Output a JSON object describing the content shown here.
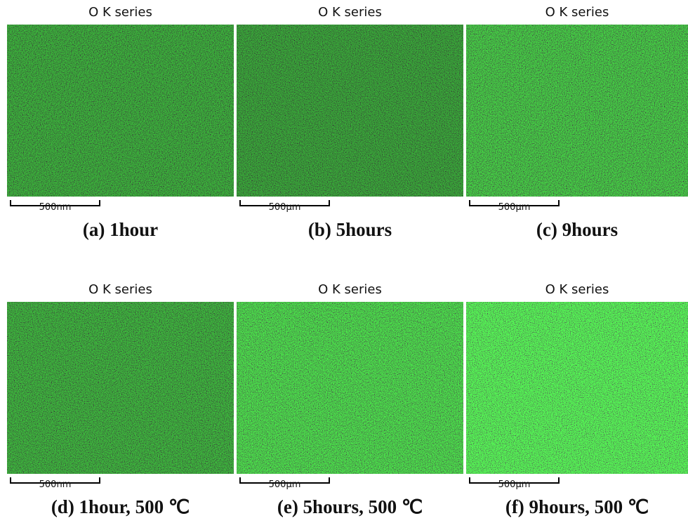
{
  "panels": [
    {
      "title": "O K series",
      "scale_label": "500nm",
      "caption": "(a) 1hour"
    },
    {
      "title": "O K series",
      "scale_label": "500µm",
      "caption": "(b) 5hours"
    },
    {
      "title": "O K series",
      "scale_label": "500µm",
      "caption": "(c) 9hours"
    },
    {
      "title": "O K series",
      "scale_label": "500nm",
      "caption": "(d) 1hour, 500 ℃"
    },
    {
      "title": "O K series",
      "scale_label": "500µm",
      "caption": "(e) 5hours, 500 ℃"
    },
    {
      "title": "O K series",
      "scale_label": "500µm",
      "caption": "(f) 9hours, 500 ℃"
    }
  ]
}
